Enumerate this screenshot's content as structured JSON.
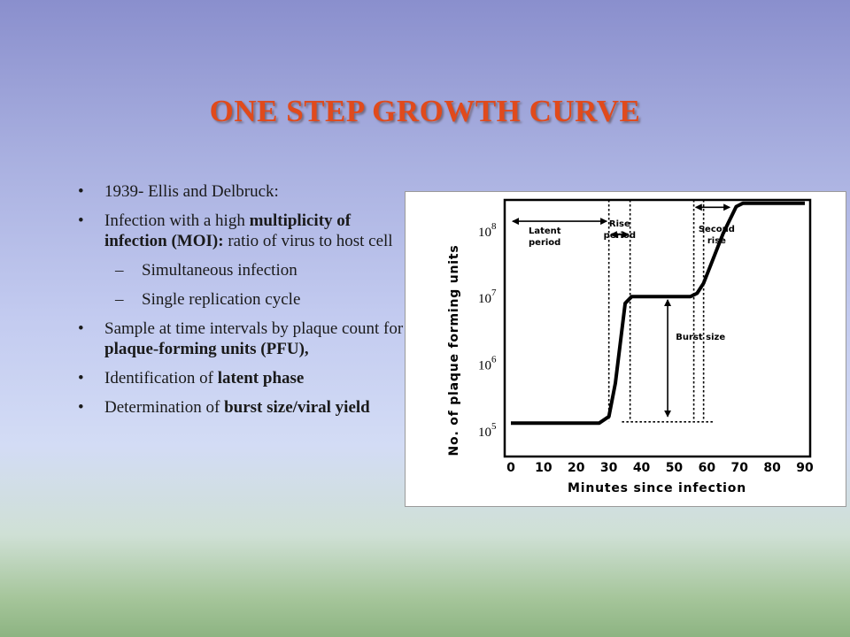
{
  "slide": {
    "title": "ONE STEP GROWTH CURVE",
    "title_color": "#e04a1c",
    "bullets": [
      {
        "plain": "1939- Ellis and Delbruck:"
      },
      {
        "pre": "Infection with a high ",
        "bold": "multiplicity of infection (MOI):",
        "post": " ratio of virus to host cell"
      },
      {
        "sub": [
          "Simultaneous infection",
          "Single replication cycle"
        ]
      },
      {
        "pre": "Sample at time intervals by plaque count for ",
        "bold": "plaque-forming units (PFU),"
      },
      {
        "pre": "Identification of ",
        "bold": "latent phase"
      },
      {
        "pre": "Determination of ",
        "bold": "burst size/viral yield"
      }
    ]
  },
  "chart_data": {
    "type": "line",
    "xlabel": "Minutes since infection",
    "ylabel": "No. of plaque forming units",
    "x_ticks": [
      "0",
      "10",
      "20",
      "30",
      "40",
      "50",
      "60",
      "70",
      "80",
      "90"
    ],
    "y_ticks": [
      {
        "base": "10",
        "exp": "5",
        "value": 5
      },
      {
        "base": "10",
        "exp": "6",
        "value": 6
      },
      {
        "base": "10",
        "exp": "7",
        "value": 7
      },
      {
        "base": "10",
        "exp": "8",
        "value": 8
      }
    ],
    "xlim": [
      0,
      90
    ],
    "ylim_log10": [
      4.6,
      8.45
    ],
    "series": [
      {
        "x": [
          0,
          27,
          30,
          32,
          35,
          37,
          55,
          57,
          59,
          65,
          69,
          71,
          90
        ],
        "y": [
          5.1,
          5.1,
          5.2,
          5.7,
          6.9,
          7.0,
          7.0,
          7.05,
          7.2,
          7.95,
          8.35,
          8.4,
          8.4
        ]
      }
    ],
    "annotations": {
      "latent_period": "Latent\nperiod",
      "rise_period": "Rise\nperiod",
      "second_rise": "Second\nrise",
      "burst_size": "Burst size"
    }
  }
}
